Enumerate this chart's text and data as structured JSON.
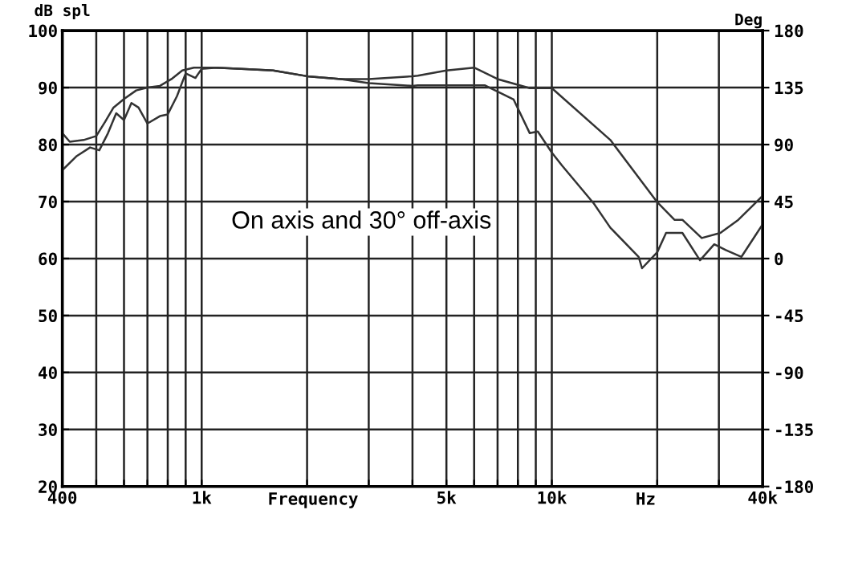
{
  "chart_data": {
    "type": "line",
    "xlabel": "Frequency",
    "ylabel": "dB spl",
    "y2label": "Deg",
    "annotations": [
      "On axis and 30° off-axis",
      "Hz"
    ],
    "series": [
      {
        "color": "#333333",
        "x": [
          400,
          420,
          460,
          500,
          530,
          560,
          600,
          650,
          700,
          760,
          820,
          880,
          950,
          1000,
          1100,
          1300,
          1600,
          2000,
          2500,
          3000,
          4000,
          4140,
          5000,
          6000,
          7000,
          8650,
          10000,
          14700,
          20000,
          22400,
          23600,
          26800,
          30300,
          34100,
          40000
        ],
        "values": [
          82,
          80.5,
          80.8,
          81.5,
          84,
          86.5,
          88,
          89.5,
          90,
          90.3,
          91.5,
          93,
          93.5,
          93.5,
          93.5,
          93.3,
          93,
          92,
          91.5,
          91.5,
          92,
          92.1,
          93,
          93.5,
          91.5,
          89.9,
          89.9,
          80.8,
          69.9,
          66.8,
          66.8,
          63.6,
          64.5,
          66.8,
          71
        ]
      },
      {
        "color": "#333333",
        "x": [
          400,
          440,
          480,
          510,
          540,
          570,
          600,
          630,
          660,
          700,
          760,
          800,
          850,
          900,
          960,
          1000,
          1100,
          1300,
          1600,
          2000,
          2500,
          3000,
          4000,
          4140,
          6430,
          7780,
          8650,
          9120,
          10000,
          10700,
          13200,
          14700,
          17700,
          18100,
          20000,
          21200,
          23600,
          26500,
          29100,
          31400,
          34800,
          38000,
          40000
        ],
        "values": [
          75.5,
          78,
          79.5,
          79,
          82,
          85.5,
          84.3,
          87.3,
          86.5,
          83.7,
          85,
          85.3,
          88.5,
          92.5,
          91.7,
          93.3,
          93.5,
          93.3,
          93,
          92,
          91.5,
          90.8,
          90.3,
          90.4,
          90.4,
          87.9,
          82,
          82.3,
          78.6,
          76.3,
          69.6,
          65.4,
          60.3,
          58.3,
          61.1,
          64.5,
          64.5,
          59.7,
          62.5,
          61.5,
          60.3,
          63.9,
          66
        ]
      }
    ],
    "log": "x",
    "xlim": [
      400,
      40000
    ],
    "xticks": [
      400,
      {
        "value": 500,
        "label": null
      },
      {
        "value": 600,
        "label": null
      },
      {
        "value": 700,
        "label": null
      },
      {
        "value": 800,
        "label": null
      },
      {
        "value": 900,
        "label": null
      },
      {
        "value": 1000,
        "label": "1k"
      },
      {
        "value": 2000,
        "label": null
      },
      {
        "value": 3000,
        "label": null
      },
      {
        "value": 4000,
        "label": null
      },
      {
        "value": 5000,
        "label": "5k"
      },
      {
        "value": 6000,
        "label": null
      },
      {
        "value": 7000,
        "label": null
      },
      {
        "value": 8000,
        "label": null
      },
      {
        "value": 9000,
        "label": null
      },
      {
        "value": 10000,
        "label": "10k"
      },
      {
        "value": 20000,
        "label": null
      },
      {
        "value": 30000,
        "label": null
      },
      {
        "value": 40000,
        "label": "40k"
      }
    ],
    "ylim": [
      20,
      100
    ],
    "yticks": [
      20,
      30,
      40,
      50,
      60,
      70,
      80,
      90,
      100
    ],
    "y2lim": [
      -180,
      180
    ],
    "y2ticks": [
      -180,
      -135,
      -90,
      -45,
      0,
      45,
      90,
      135,
      180
    ],
    "grid": true,
    "marker": "none",
    "line_style": "solid"
  }
}
